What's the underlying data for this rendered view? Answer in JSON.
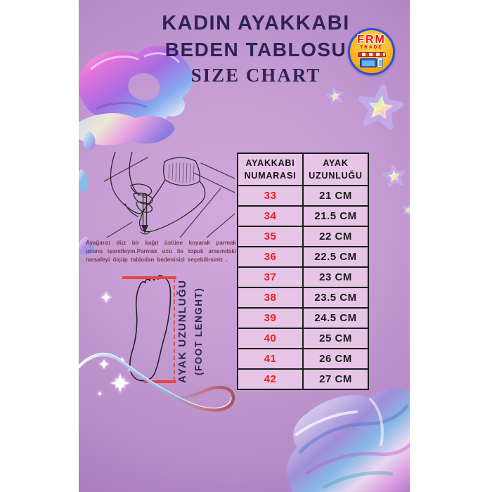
{
  "title": {
    "line1": "KADIN AYAKKABI",
    "line2": "BEDEN TABLOSU",
    "line3": "SIZE CHART"
  },
  "logo": {
    "name": "FRM",
    "sub": "TRADE"
  },
  "instructions": {
    "text": "Ayağınızı düz bir kağıt üstüne koyarak parmak ucunu işaretleyin.Parmak ucu ile topuk arasındaki mesafeyi ölçüp tablodan bedeninizi seçebilirsiniz ."
  },
  "measure_label": {
    "line1": "AYAK UZUNLUĞU",
    "line2": "(FOOT LENGHT)"
  },
  "size_table": {
    "col1_header": "AYAKKABI NUMARASI",
    "col2_header": "AYAK UZUNLUĞU",
    "rows": [
      {
        "size": "33",
        "length": "21 CM"
      },
      {
        "size": "34",
        "length": "21.5 CM"
      },
      {
        "size": "35",
        "length": "22 CM"
      },
      {
        "size": "36",
        "length": "22.5 CM"
      },
      {
        "size": "37",
        "length": "23 CM"
      },
      {
        "size": "38",
        "length": "23.5 CM"
      },
      {
        "size": "39",
        "length": "24.5 CM"
      },
      {
        "size": "40",
        "length": "25 CM"
      },
      {
        "size": "41",
        "length": "26 CM"
      },
      {
        "size": "42",
        "length": "27 CM"
      }
    ]
  },
  "chart_data": {
    "type": "table",
    "title": "KADIN AYAKKABI BEDEN TABLOSU / SIZE CHART",
    "columns": [
      "AYAKKABI NUMARASI",
      "AYAK UZUNLUĞU"
    ],
    "rows": [
      [
        "33",
        "21 CM"
      ],
      [
        "34",
        "21.5 CM"
      ],
      [
        "35",
        "22 CM"
      ],
      [
        "36",
        "22.5 CM"
      ],
      [
        "37",
        "23 CM"
      ],
      [
        "38",
        "23.5 CM"
      ],
      [
        "39",
        "24.5 CM"
      ],
      [
        "40",
        "25 CM"
      ],
      [
        "41",
        "26 CM"
      ],
      [
        "42",
        "27 CM"
      ]
    ]
  },
  "colors": {
    "title_text": "#2e2257",
    "size_number_red": "#f01e1e",
    "table_background": "#e6c5e7",
    "poster_purple": "#b68cc8",
    "instruction_text": "#7e3a46",
    "measure_line_red": "#e04848",
    "logo_ring_blue": "#2753d8",
    "logo_fill_orange": "#ffa40a"
  }
}
